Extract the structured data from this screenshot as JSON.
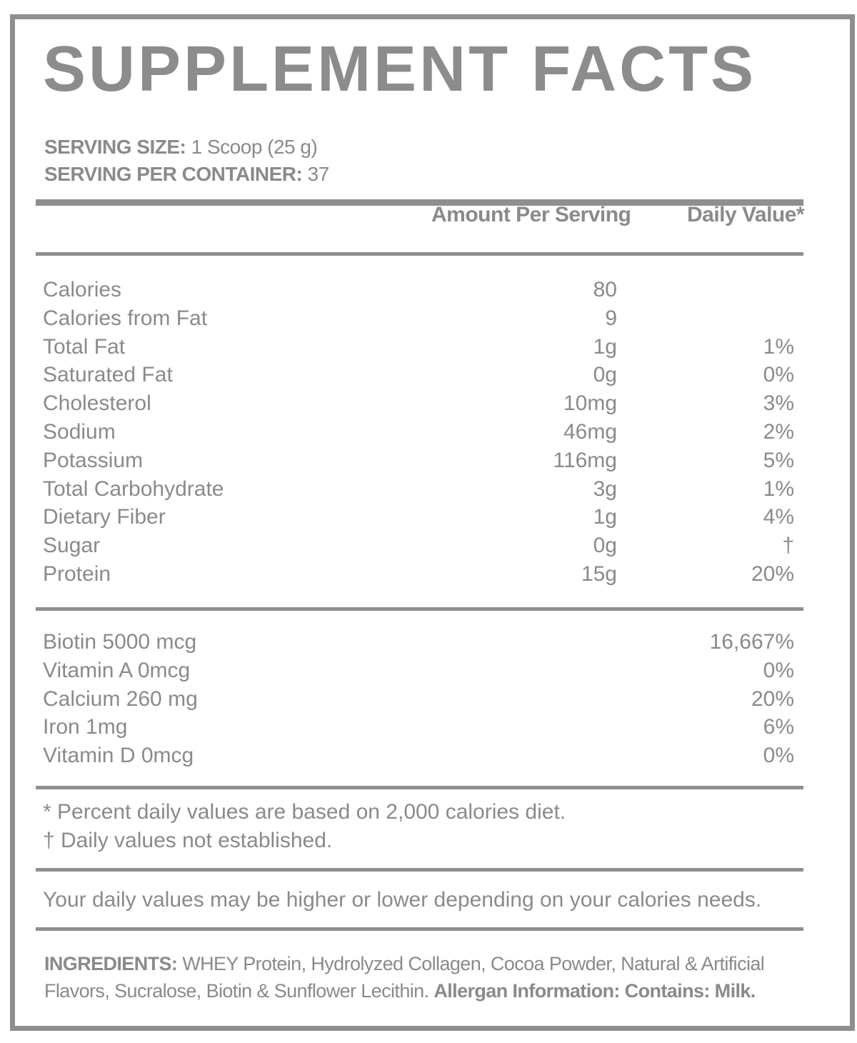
{
  "title": "SUPPLEMENT FACTS",
  "serving": {
    "size_label": "SERVING SIZE:",
    "size_value": "1 Scoop (25 g)",
    "per_container_label": "SERVING PER CONTAINER:",
    "per_container_value": "37"
  },
  "columns": {
    "amount": "Amount Per Serving",
    "daily_value": "Daily Value*"
  },
  "nutrients": [
    {
      "name": "Calories",
      "amount": "80",
      "dv": ""
    },
    {
      "name": "Calories from Fat",
      "amount": "9",
      "dv": ""
    },
    {
      "name": "Total Fat",
      "amount": "1g",
      "dv": "1%"
    },
    {
      "name": "Saturated Fat",
      "amount": "0g",
      "dv": "0%"
    },
    {
      "name": "Cholesterol",
      "amount": "10mg",
      "dv": "3%"
    },
    {
      "name": "Sodium",
      "amount": "46mg",
      "dv": "2%"
    },
    {
      "name": "Potassium",
      "amount": "116mg",
      "dv": "5%"
    },
    {
      "name": "Total Carbohydrate",
      "amount": "3g",
      "dv": "1%"
    },
    {
      "name": "Dietary Fiber",
      "amount": "1g",
      "dv": "4%"
    },
    {
      "name": "Sugar",
      "amount": "0g",
      "dv": "†"
    },
    {
      "name": "Protein",
      "amount": "15g",
      "dv": "20%"
    }
  ],
  "vitamins": [
    {
      "name": "Biotin 5000 mcg",
      "dv": "16,667%"
    },
    {
      "name": "Vitamin A 0mcg",
      "dv": "0%"
    },
    {
      "name": "Calcium 260 mg",
      "dv": "20%"
    },
    {
      "name": "Iron 1mg",
      "dv": "6%"
    },
    {
      "name": "Vitamin D 0mcg",
      "dv": "0%"
    }
  ],
  "footnotes": {
    "percent_note": "* Percent daily values are based on 2,000 calories diet.",
    "dagger_note": "† Daily values not established.",
    "varies_note": "Your daily values may be higher or lower depending on your calories needs."
  },
  "ingredients": {
    "label": "INGREDIENTS:",
    "text": " WHEY Protein, Hydrolyzed Collagen, Cocoa Powder, Natural & Artificial Flavors, Sucralose, Biotin & Sunflower Lecithin. ",
    "allergen": "Allergan Information: Contains: Milk."
  }
}
